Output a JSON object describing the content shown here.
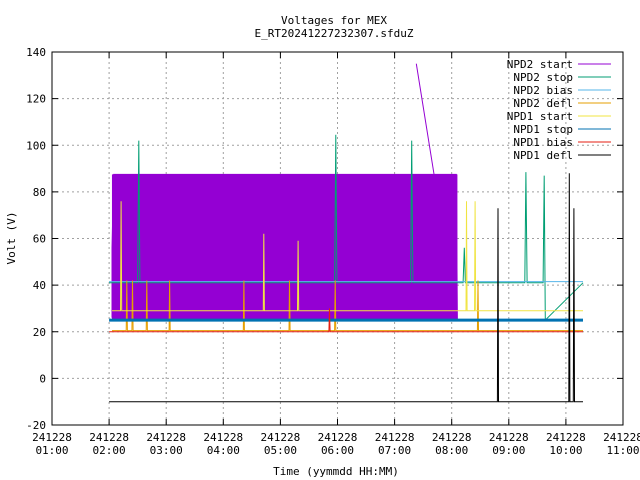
{
  "chart_data": {
    "type": "line",
    "title": "Voltages for MEX",
    "subtitle": "E_RT20241227232307.sfduZ",
    "xlabel": "Time (yymmdd HH:MM)",
    "ylabel": "Volt (V)",
    "xlim": [
      1.0,
      11.0
    ],
    "ylim": [
      -20,
      140
    ],
    "grid": true,
    "legend_position": "top-right",
    "yticks": [
      -20,
      0,
      20,
      40,
      60,
      80,
      100,
      120,
      140
    ],
    "xticks": [
      {
        "x": 1.0,
        "date": "241228",
        "time": "01:00"
      },
      {
        "x": 2.0,
        "date": "241228",
        "time": "02:00"
      },
      {
        "x": 3.0,
        "date": "241228",
        "time": "03:00"
      },
      {
        "x": 4.0,
        "date": "241228",
        "time": "04:00"
      },
      {
        "x": 5.0,
        "date": "241228",
        "time": "05:00"
      },
      {
        "x": 6.0,
        "date": "241228",
        "time": "06:00"
      },
      {
        "x": 7.0,
        "date": "241228",
        "time": "07:00"
      },
      {
        "x": 8.0,
        "date": "241228",
        "time": "08:00"
      },
      {
        "x": 9.0,
        "date": "241228",
        "time": "09:00"
      },
      {
        "x": 10.0,
        "date": "241228",
        "time": "10:00"
      },
      {
        "x": 11.0,
        "date": "241228",
        "time": "11:00"
      }
    ],
    "series": [
      {
        "name": "NPD2 start",
        "color": "#9400d3",
        "band": {
          "x": [
            2.05,
            8.1
          ],
          "low": 25,
          "high": 87.5
        },
        "points": [
          [
            2.05,
            26
          ],
          [
            2.05,
            56
          ],
          [
            2.08,
            87.5
          ],
          [
            8.08,
            87.5
          ],
          [
            8.1,
            25
          ],
          [
            7.38,
            135
          ]
        ]
      },
      {
        "name": "NPD2 stop",
        "color": "#009e73",
        "points": [
          [
            2.0,
            41
          ],
          [
            2.5,
            41
          ],
          [
            2.52,
            102
          ],
          [
            2.54,
            41
          ],
          [
            5.95,
            41
          ],
          [
            5.97,
            104.5
          ],
          [
            5.99,
            41
          ],
          [
            7.28,
            41
          ],
          [
            7.3,
            102
          ],
          [
            7.32,
            41
          ],
          [
            8.2,
            41
          ],
          [
            8.22,
            56
          ],
          [
            8.24,
            41
          ],
          [
            9.28,
            41
          ],
          [
            9.3,
            88.5
          ],
          [
            9.32,
            41
          ],
          [
            9.6,
            41
          ],
          [
            9.62,
            87
          ],
          [
            9.64,
            25
          ],
          [
            10.3,
            41
          ]
        ]
      },
      {
        "name": "NPD2 bias",
        "color": "#56b4e9",
        "points": [
          [
            2.0,
            41.5
          ],
          [
            10.3,
            41.5
          ]
        ]
      },
      {
        "name": "NPD2 defl",
        "color": "#e69f00",
        "points": [
          [
            2.05,
            20.5
          ],
          [
            2.3,
            20.5
          ],
          [
            2.31,
            42
          ],
          [
            2.32,
            20.5
          ],
          [
            2.4,
            20.5
          ],
          [
            2.41,
            42
          ],
          [
            2.42,
            20.5
          ],
          [
            2.65,
            20.5
          ],
          [
            2.66,
            42
          ],
          [
            2.67,
            20.5
          ],
          [
            3.05,
            20.5
          ],
          [
            3.06,
            42
          ],
          [
            3.07,
            20.5
          ],
          [
            4.35,
            20.5
          ],
          [
            4.36,
            42
          ],
          [
            4.37,
            20.5
          ],
          [
            5.15,
            20.5
          ],
          [
            5.16,
            42
          ],
          [
            5.17,
            20.5
          ],
          [
            5.95,
            20.5
          ],
          [
            5.96,
            42
          ],
          [
            5.97,
            20.5
          ],
          [
            8.45,
            20.5
          ],
          [
            8.46,
            42
          ],
          [
            8.47,
            20.5
          ],
          [
            10.3,
            20.5
          ]
        ]
      },
      {
        "name": "NPD1 start",
        "color": "#f0e442",
        "points": [
          [
            2.05,
            29
          ],
          [
            2.2,
            29
          ],
          [
            2.21,
            76
          ],
          [
            2.22,
            29
          ],
          [
            3.5,
            29
          ],
          [
            4.7,
            29
          ],
          [
            4.71,
            62
          ],
          [
            4.72,
            29
          ],
          [
            5.3,
            29
          ],
          [
            5.31,
            59
          ],
          [
            5.32,
            29
          ],
          [
            8.25,
            29
          ],
          [
            8.26,
            76
          ],
          [
            8.27,
            29
          ],
          [
            8.4,
            29
          ],
          [
            8.41,
            76
          ],
          [
            8.42,
            29
          ],
          [
            10.3,
            29
          ]
        ]
      },
      {
        "name": "NPD1 stop",
        "color": "#0072b2",
        "points": [
          [
            2.0,
            25
          ],
          [
            10.3,
            25
          ]
        ]
      },
      {
        "name": "NPD1 bias",
        "color": "#e51e10",
        "points": [
          [
            2.0,
            20
          ],
          [
            5.85,
            20
          ],
          [
            5.86,
            30
          ],
          [
            5.87,
            20
          ],
          [
            10.3,
            20
          ]
        ]
      },
      {
        "name": "NPD1 defl",
        "color": "#000000",
        "points": [
          [
            2.0,
            -10
          ],
          [
            8.8,
            -10
          ],
          [
            8.81,
            73
          ],
          [
            8.82,
            -10
          ],
          [
            10.05,
            -10
          ],
          [
            10.06,
            88
          ],
          [
            10.07,
            -10
          ],
          [
            10.13,
            -10
          ],
          [
            10.14,
            73
          ],
          [
            10.15,
            -10
          ],
          [
            10.3,
            -10
          ]
        ]
      }
    ]
  }
}
